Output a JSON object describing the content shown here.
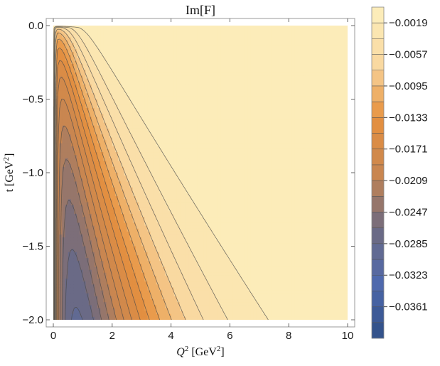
{
  "chart_data": {
    "type": "contour",
    "title": "Im[F]",
    "xlabel": {
      "base": "Q",
      "sup": "2",
      "unit_base": " [GeV",
      "unit_sup": "2",
      "unit_end": "]"
    },
    "ylabel": {
      "base": "t [GeV",
      "sup": "2",
      "end": "]"
    },
    "x_ticks": [
      0,
      2,
      4,
      6,
      8,
      10
    ],
    "x_tick_labels": [
      "0",
      "2",
      "4",
      "6",
      "8",
      "10"
    ],
    "y_ticks": [
      0.0,
      -0.5,
      -1.0,
      -1.5,
      -2.0
    ],
    "y_tick_labels": [
      "0.0",
      "−0.5",
      "−1.0",
      "−1.5",
      "−2.0"
    ],
    "xlim": [
      0,
      10
    ],
    "ylim": [
      -2,
      0
    ],
    "colorbar": {
      "min": -0.0399,
      "max": 0.0,
      "step": 0.0019,
      "tick_values": [
        -0.0019,
        -0.0057,
        -0.0095,
        -0.0133,
        -0.0171,
        -0.0209,
        -0.0247,
        -0.0285,
        -0.0323,
        -0.0361
      ],
      "tick_labels": [
        "−0.0019",
        "−0.0057",
        "−0.0095",
        "−0.0133",
        "−0.0171",
        "−0.0209",
        "−0.0247",
        "−0.0285",
        "−0.0323",
        "−0.0361"
      ],
      "colors": [
        "#fdefbd",
        "#f9d9a1",
        "#e6913e",
        "#c98650",
        "#6f6a80",
        "#4f69ad",
        "#2f4f86"
      ]
    }
  }
}
